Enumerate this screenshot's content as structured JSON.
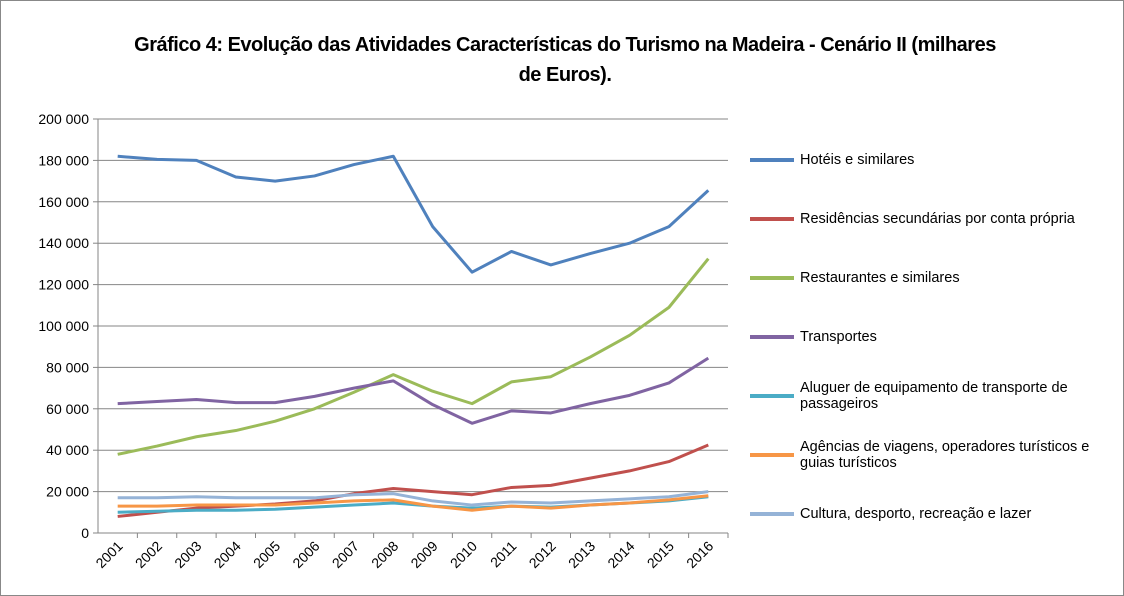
{
  "chart_data": {
    "type": "line",
    "title": "Gráfico 4: Evolução das Atividades Características do Turismo na Madeira - Cenário II (milhares de Euros).",
    "categories": [
      "2001",
      "2002",
      "2003",
      "2004",
      "2005",
      "2006",
      "2007",
      "2008",
      "2009",
      "2010",
      "2011",
      "2012",
      "2013",
      "2014",
      "2015",
      "2016"
    ],
    "series": [
      {
        "name": "Hotéis e similares",
        "color": "#4f81bd",
        "values": [
          182000,
          180500,
          180000,
          172000,
          170000,
          172500,
          178000,
          182000,
          148000,
          126000,
          136000,
          129500,
          135000,
          140000,
          148000,
          165500
        ]
      },
      {
        "name": "Residências secundárias por conta própria",
        "color": "#c0504d",
        "values": [
          8000,
          10000,
          12000,
          13000,
          14000,
          15500,
          19000,
          21500,
          20000,
          18500,
          22000,
          23000,
          26500,
          30000,
          34500,
          42500
        ]
      },
      {
        "name": "Restaurantes e similares",
        "color": "#9bbb59",
        "values": [
          38000,
          42000,
          46500,
          49500,
          54000,
          60000,
          68000,
          76500,
          68500,
          62500,
          73000,
          75500,
          85000,
          95500,
          109000,
          132500
        ]
      },
      {
        "name": "Transportes",
        "color": "#8064a2",
        "values": [
          62500,
          63500,
          64500,
          63000,
          63000,
          66000,
          70000,
          73500,
          62000,
          53000,
          59000,
          58000,
          62500,
          66500,
          72500,
          84500
        ]
      },
      {
        "name": "Aluguer de equipamento de transporte de passageiros",
        "color": "#4bacc6",
        "values": [
          10000,
          10500,
          11000,
          11000,
          11500,
          12500,
          13500,
          14500,
          13000,
          12000,
          13000,
          12500,
          13500,
          14500,
          15500,
          17500
        ]
      },
      {
        "name": "Agências de viagens, operadores turísticos e guias turísticos",
        "color": "#f79646",
        "values": [
          13000,
          13000,
          13500,
          13500,
          13500,
          14500,
          15500,
          16000,
          13000,
          11000,
          13000,
          12000,
          13500,
          14500,
          16000,
          18000
        ]
      },
      {
        "name": "Cultura, desporto, recreação e lazer",
        "color": "#95b3d7",
        "values": [
          17000,
          17000,
          17500,
          17000,
          17000,
          17000,
          18500,
          19000,
          15500,
          13500,
          15000,
          14500,
          15500,
          16500,
          17500,
          20000
        ]
      }
    ],
    "ylim": [
      0,
      200000
    ],
    "yticks": [
      0,
      {
        "value": 20000,
        "label": "20 000"
      },
      {
        "value": 40000,
        "label": "40 000"
      },
      {
        "value": 60000,
        "label": "60 000"
      },
      {
        "value": 80000,
        "label": "80 000"
      },
      {
        "value": 100000,
        "label": "100 000"
      },
      {
        "value": 120000,
        "label": "120 000"
      },
      {
        "value": 140000,
        "label": "140 000"
      },
      {
        "value": 160000,
        "label": "160 000"
      },
      {
        "value": 180000,
        "label": "180 000"
      },
      {
        "value": 200000,
        "label": "200 000"
      }
    ],
    "grid": true,
    "legend": "right"
  }
}
